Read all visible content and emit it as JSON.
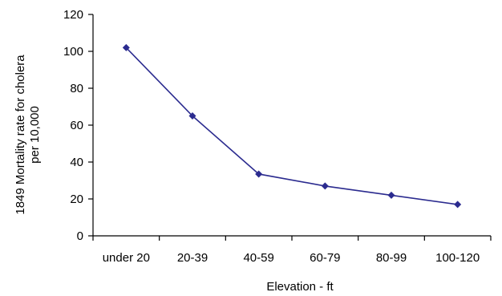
{
  "chart_data": {
    "type": "line",
    "categories": [
      "under 20",
      "20-39",
      "40-59",
      "60-79",
      "80-99",
      "100-120"
    ],
    "series": [
      {
        "values": [
          102,
          65,
          33.5,
          27,
          22,
          17
        ]
      }
    ],
    "ylim": [
      0,
      120
    ],
    "yticks": [
      0,
      20,
      40,
      60,
      80,
      100,
      120
    ],
    "xlabel": "Elevation - ft",
    "ylabel_lines": [
      "1849 Mortality rate for cholera",
      "per 10,000"
    ],
    "grid": false,
    "colors": {
      "line": "#2b2b8f",
      "marker": "#2b2b8f",
      "axis": "#000000"
    },
    "marker": "diamond"
  }
}
